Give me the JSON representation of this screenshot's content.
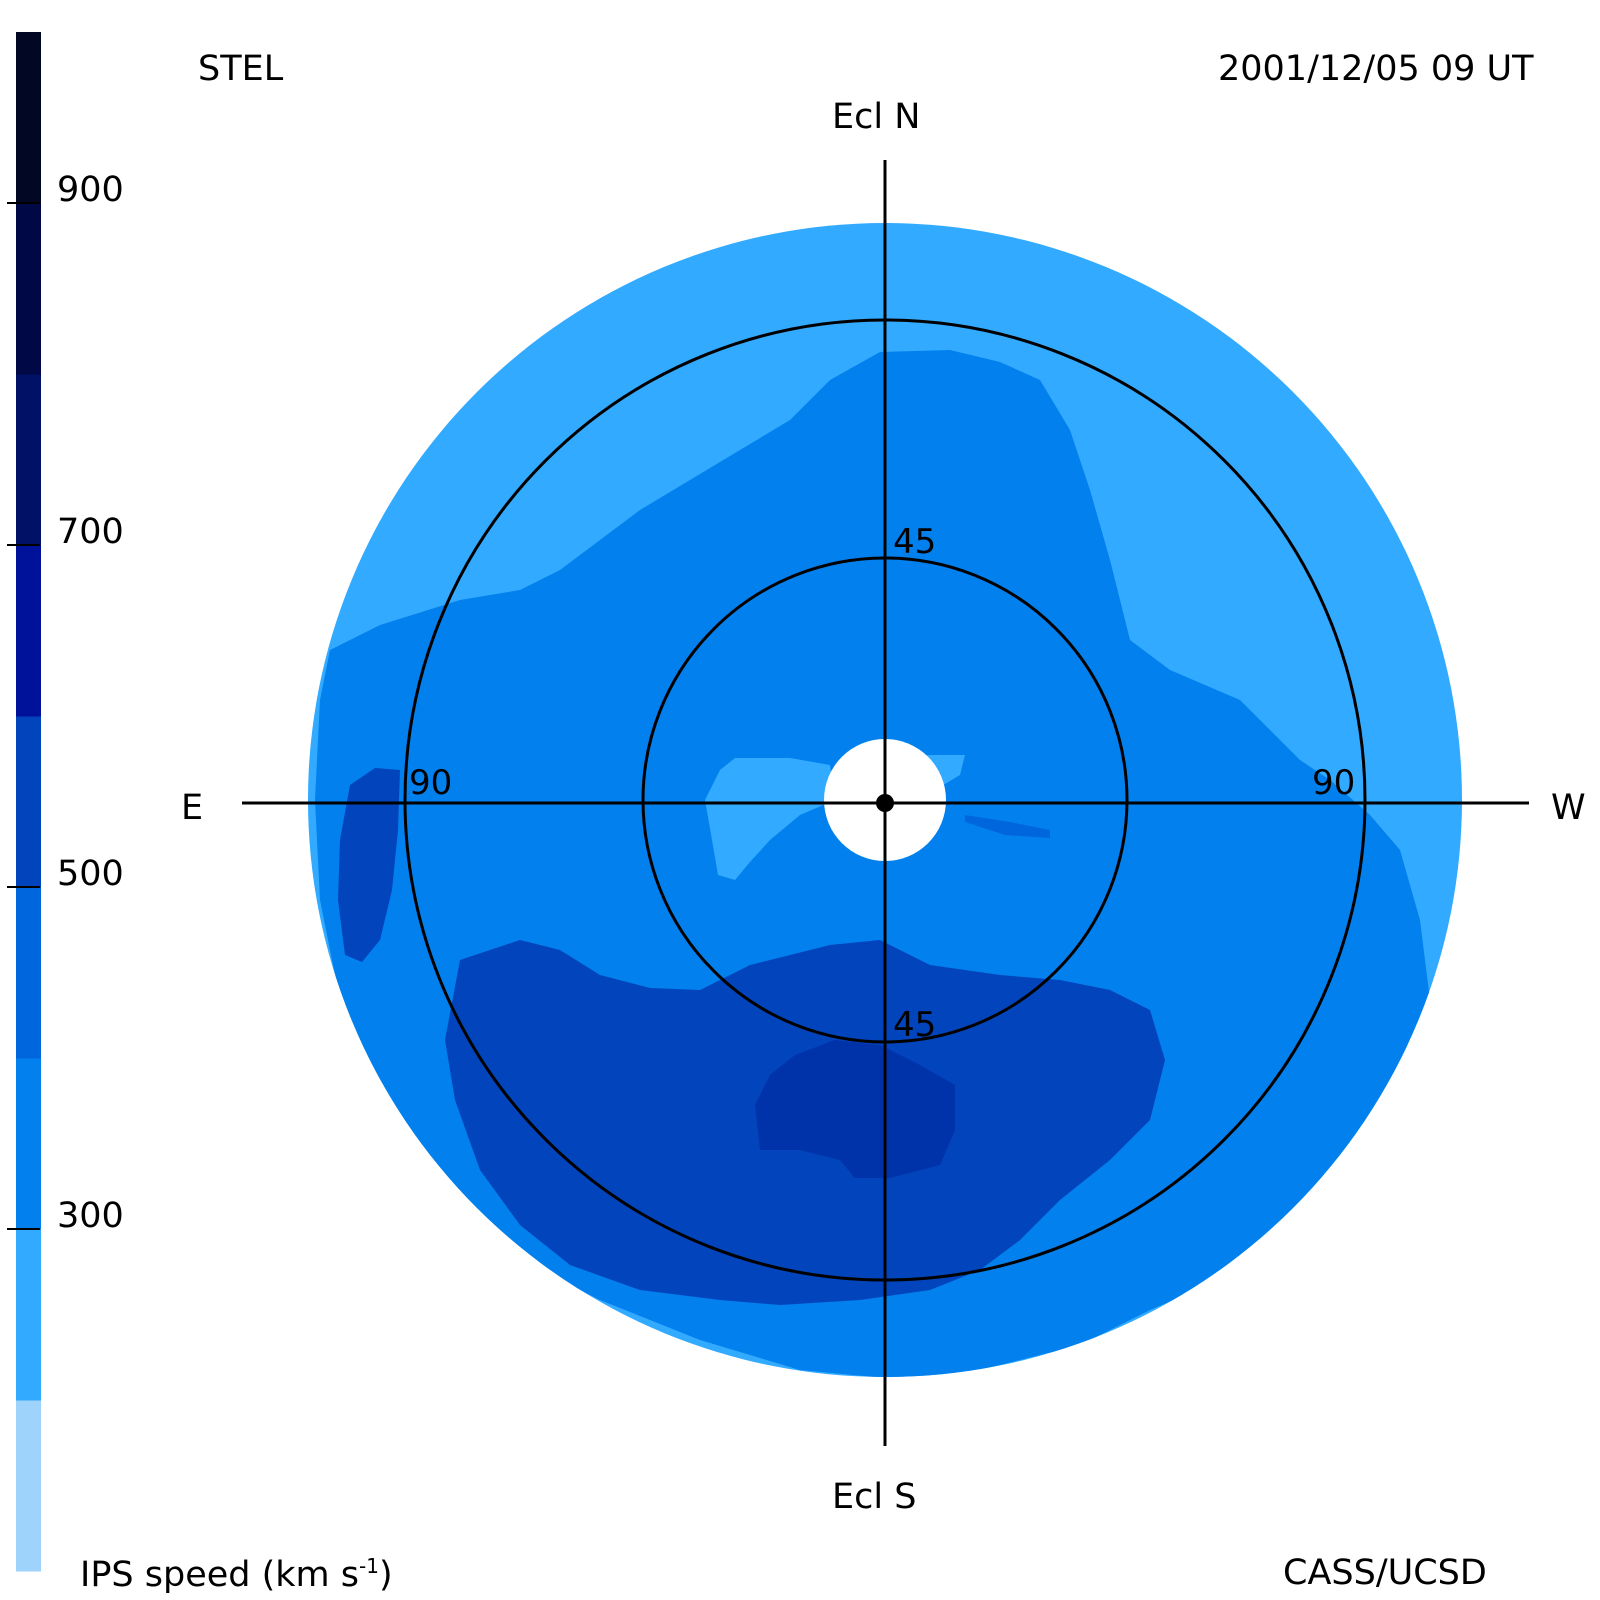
{
  "header": {
    "observatory": "STEL",
    "datetime": "2001/12/05 09 UT"
  },
  "directions": {
    "north": "Ecl N",
    "south": "Ecl S",
    "east": "E",
    "west": "W"
  },
  "rings": {
    "inner_north": "45",
    "inner_south": "45",
    "outer_east": "90",
    "outer_west": "90"
  },
  "colorbar": {
    "title": "IPS speed (km s",
    "title_superscript": "-1",
    "title_end": ")",
    "tick_labels": [
      "900",
      "700",
      "500",
      "300"
    ],
    "colors": [
      "#9ed3fb",
      "#32aaff",
      "#0280ee",
      "#0066dd",
      "#0244bb",
      "#001299",
      "#001166",
      "#000845",
      "#020724"
    ]
  },
  "footer": {
    "credit": "CASS/UCSD"
  },
  "colors": {
    "disk_light": "#32aaff",
    "disk_mid": "#0280ee",
    "disk_darker": "#0066dd",
    "disk_dark": "#0244bb",
    "sun_occulter": "#ffffff",
    "lines": "#000000"
  }
}
